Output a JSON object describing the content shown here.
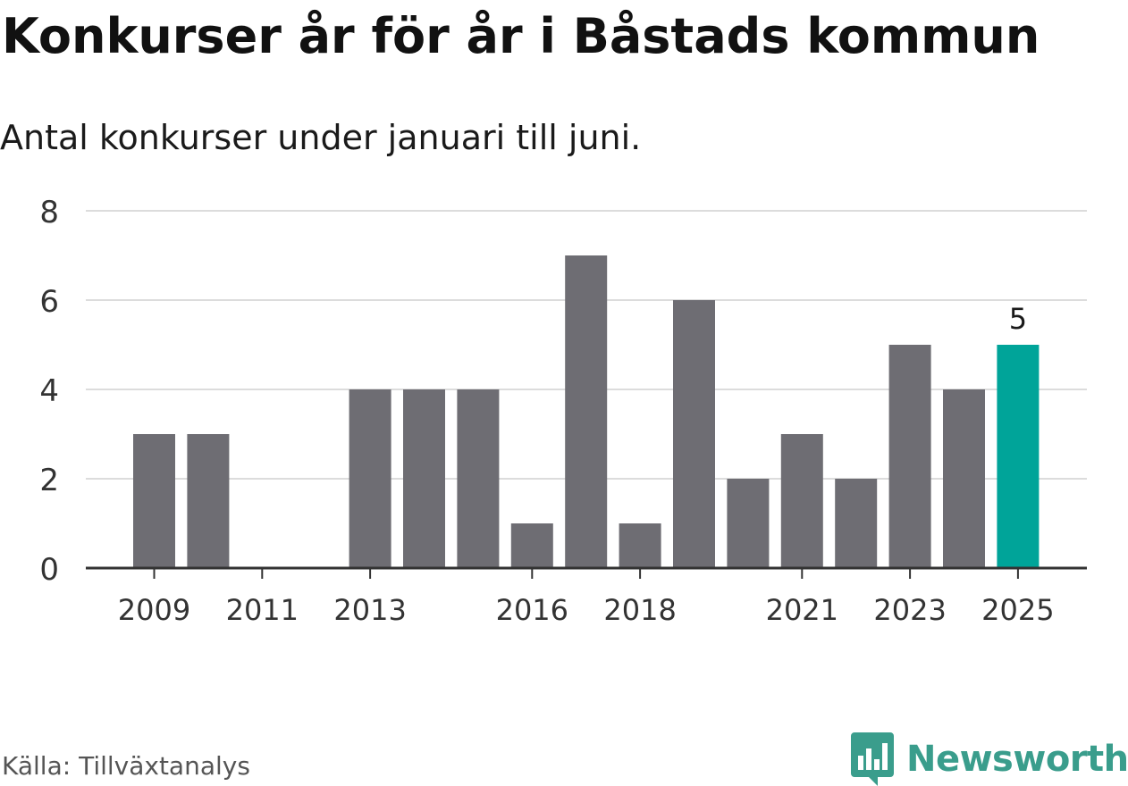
{
  "title": "Konkurser år för år i Båstads kommun",
  "subtitle": "Antal konkurser under januari till juni.",
  "source": "Källa: Tillväxtanalys",
  "brand": {
    "name": "Newsworthy",
    "icon": "newsworthy-logo-icon",
    "color": "#3a9d8c"
  },
  "chart_data": {
    "type": "bar",
    "categories": [
      "2009",
      "2010",
      "2011",
      "2012",
      "2013",
      "2014",
      "2015",
      "2016",
      "2017",
      "2018",
      "2019",
      "2020",
      "2021",
      "2022",
      "2023",
      "2024",
      "2025"
    ],
    "values": [
      3,
      3,
      0,
      0,
      4,
      4,
      4,
      1,
      7,
      1,
      6,
      2,
      3,
      2,
      5,
      4,
      5
    ],
    "x_tick_labels": [
      "2009",
      "2011",
      "2013",
      "2016",
      "2018",
      "2021",
      "2023",
      "2025"
    ],
    "y_ticks": [
      0,
      2,
      4,
      6,
      8
    ],
    "ylim": [
      0,
      8
    ],
    "grid": true,
    "colors": {
      "default": "#6e6d73",
      "highlight": "#00a499",
      "grid": "#dcdcdc",
      "axis": "#333333"
    },
    "highlight": {
      "category": "2025",
      "label": "5"
    },
    "title": "Konkurser år för år i Båstads kommun",
    "xlabel": "",
    "ylabel": ""
  }
}
